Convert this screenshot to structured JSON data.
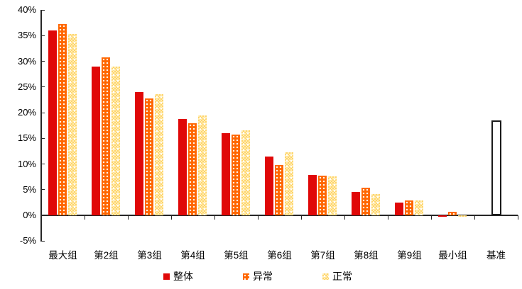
{
  "chart_data": {
    "type": "bar",
    "categories": [
      "最大组",
      "第2组",
      "第3组",
      "第4组",
      "第5组",
      "第6组",
      "第7组",
      "第8组",
      "第9组",
      "最小组",
      "基准"
    ],
    "series": [
      {
        "name": "整体",
        "color": "#E00808",
        "pattern": "solid",
        "values": [
          36.0,
          29.0,
          24.0,
          18.8,
          16.0,
          11.4,
          7.8,
          4.6,
          2.5,
          -0.3,
          null
        ]
      },
      {
        "name": "异常",
        "color": "#FF6600",
        "pattern": "dots",
        "values": [
          37.2,
          30.8,
          22.8,
          17.9,
          15.7,
          9.8,
          7.7,
          5.4,
          2.9,
          0.7,
          null
        ]
      },
      {
        "name": "正常",
        "color": "#FFD469",
        "pattern": "checker",
        "values": [
          35.3,
          28.9,
          23.6,
          19.5,
          16.5,
          12.3,
          7.6,
          4.2,
          2.9,
          -0.3,
          null
        ]
      }
    ],
    "benchmark": {
      "category": "基准",
      "value": 18.5,
      "fill": "#FFFFFF",
      "border": "#1A1A1A"
    },
    "ylim": [
      -5,
      40
    ],
    "ytick_step": 5,
    "ytick_labels": [
      "40%",
      "35%",
      "30%",
      "25%",
      "20%",
      "15%",
      "10%",
      "5%",
      "0%",
      "-5%"
    ],
    "legend": {
      "position": "bottom",
      "items": [
        "整体",
        "异常",
        "正常"
      ]
    },
    "grid": false
  },
  "colors": {
    "axis": "#262626",
    "text": "#000000"
  }
}
